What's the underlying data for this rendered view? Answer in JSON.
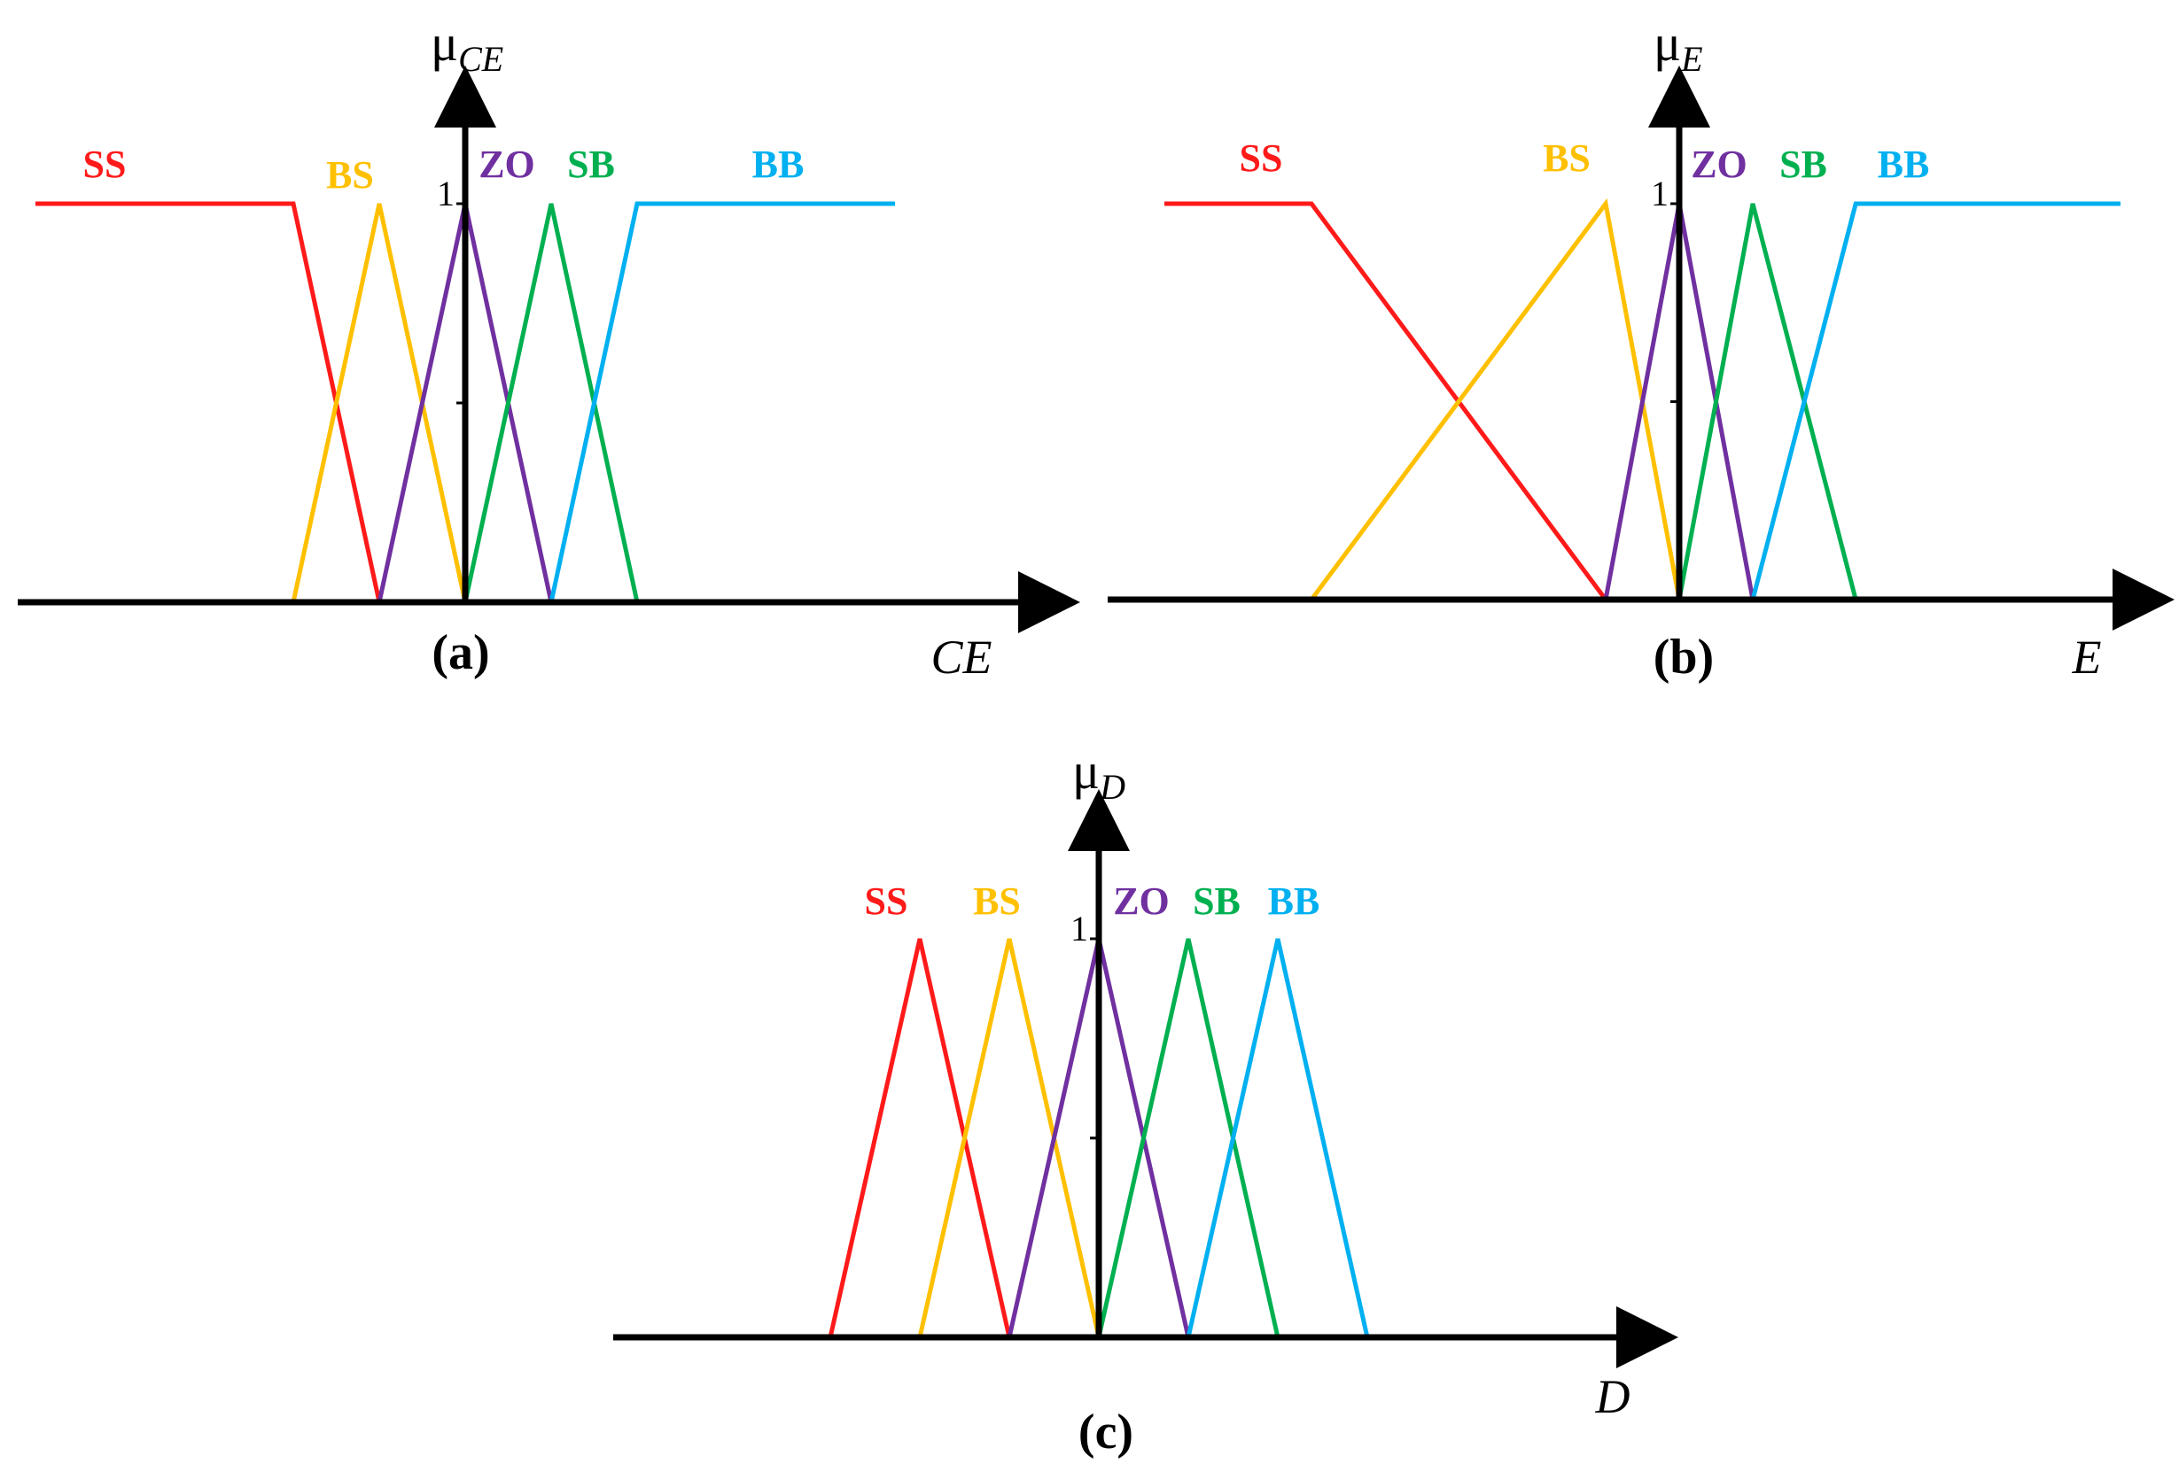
{
  "colors": {
    "SS": "#ff1a1a",
    "BS": "#ffc000",
    "ZO": "#7030a0",
    "SB": "#00b050",
    "BB": "#00b0f0",
    "axis": "#000000"
  },
  "panels": [
    {
      "id": "a",
      "panel_label": "(a)",
      "y_label_main": "μ",
      "y_label_sub": "CE",
      "x_label": "CE",
      "tick_one": "1",
      "sets": [
        {
          "name": "SS",
          "label": "SS",
          "points": [
            [
              -5,
              1
            ],
            [
              -2,
              1
            ],
            [
              -1,
              0
            ]
          ]
        },
        {
          "name": "BS",
          "label": "BS",
          "points": [
            [
              -2,
              0
            ],
            [
              -1,
              1
            ],
            [
              0,
              0
            ]
          ]
        },
        {
          "name": "ZO",
          "label": "ZO",
          "points": [
            [
              -1,
              0
            ],
            [
              0,
              1
            ],
            [
              1,
              0
            ]
          ]
        },
        {
          "name": "SB",
          "label": "SB",
          "points": [
            [
              0,
              0
            ],
            [
              1,
              1
            ],
            [
              2,
              0
            ]
          ]
        },
        {
          "name": "BB",
          "label": "BB",
          "points": [
            [
              1,
              0
            ],
            [
              2,
              1
            ],
            [
              5,
              1
            ]
          ]
        }
      ]
    },
    {
      "id": "b",
      "panel_label": "(b)",
      "y_label_main": "μ",
      "y_label_sub": "E",
      "x_label": "E",
      "tick_one": "1",
      "sets": [
        {
          "name": "SS",
          "label": "SS",
          "points": [
            [
              -7,
              1
            ],
            [
              -5,
              1
            ],
            [
              -1,
              0
            ]
          ]
        },
        {
          "name": "BS",
          "label": "BS",
          "points": [
            [
              -5,
              0
            ],
            [
              -1,
              1
            ],
            [
              0,
              0
            ]
          ]
        },
        {
          "name": "ZO",
          "label": "ZO",
          "points": [
            [
              -1,
              0
            ],
            [
              0,
              1
            ],
            [
              1,
              0
            ]
          ]
        },
        {
          "name": "SB",
          "label": "SB",
          "points": [
            [
              0,
              0
            ],
            [
              1,
              1
            ],
            [
              2.4,
              0
            ]
          ]
        },
        {
          "name": "BB",
          "label": "BB",
          "points": [
            [
              1,
              0
            ],
            [
              2.4,
              1
            ],
            [
              6,
              1
            ]
          ]
        }
      ]
    },
    {
      "id": "c",
      "panel_label": "(c)",
      "y_label_main": "μ",
      "y_label_sub": "D",
      "x_label": "D",
      "tick_one": "1",
      "sets": [
        {
          "name": "SS",
          "label": "SS",
          "points": [
            [
              -3,
              0
            ],
            [
              -2,
              1
            ],
            [
              -1,
              0
            ]
          ]
        },
        {
          "name": "BS",
          "label": "BS",
          "points": [
            [
              -2,
              0
            ],
            [
              -1,
              1
            ],
            [
              0,
              0
            ]
          ]
        },
        {
          "name": "ZO",
          "label": "ZO",
          "points": [
            [
              -1,
              0
            ],
            [
              0,
              1
            ],
            [
              1,
              0
            ]
          ]
        },
        {
          "name": "SB",
          "label": "SB",
          "points": [
            [
              0,
              0
            ],
            [
              1,
              1
            ],
            [
              2,
              0
            ]
          ]
        },
        {
          "name": "BB",
          "label": "BB",
          "points": [
            [
              1,
              0
            ],
            [
              2,
              1
            ],
            [
              3,
              0
            ]
          ]
        }
      ]
    }
  ]
}
